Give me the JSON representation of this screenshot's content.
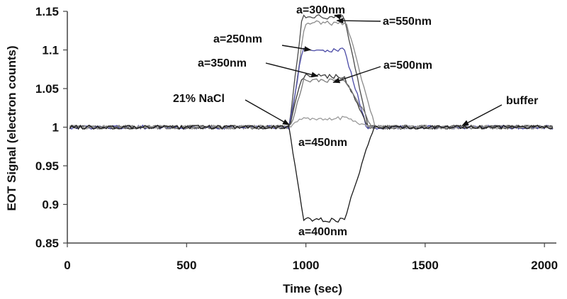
{
  "chart_data": {
    "type": "line",
    "xlabel": "Time (sec)",
    "ylabel": "EOT Signal (electron counts)",
    "xlim": [
      0,
      2050
    ],
    "ylim": [
      0.85,
      1.15
    ],
    "x_ticks": [
      0,
      500,
      1000,
      1500,
      2000
    ],
    "y_ticks": [
      0.85,
      0.9,
      0.95,
      1,
      1.05,
      1.1,
      1.15
    ],
    "x_tick_labels": [
      "0",
      "500",
      "1000",
      "1500",
      "2000"
    ],
    "y_tick_labels": [
      "0.85",
      "0.9",
      "0.95",
      "1",
      "1.05",
      "1.1",
      "1.15"
    ],
    "grid": false,
    "series": [
      {
        "name": "a=300nm",
        "color": "#4a4a4a",
        "plateau": 1.143,
        "rise_start": 930,
        "rise_end": 985,
        "fall_start": 1160,
        "fall_end": 1260
      },
      {
        "name": "a=550nm",
        "color": "#8a8a8a",
        "plateau": 1.135,
        "rise_start": 935,
        "rise_end": 995,
        "fall_start": 1170,
        "fall_end": 1290
      },
      {
        "name": "a=250nm",
        "color": "#4b4ba6",
        "plateau": 1.1,
        "rise_start": 930,
        "rise_end": 985,
        "fall_start": 1160,
        "fall_end": 1255
      },
      {
        "name": "a=350nm",
        "color": "#3a3a3a",
        "plateau": 1.066,
        "rise_start": 930,
        "rise_end": 985,
        "fall_start": 1160,
        "fall_end": 1260
      },
      {
        "name": "a=500nm",
        "color": "#7a7a7a",
        "plateau": 1.06,
        "rise_start": 935,
        "rise_end": 990,
        "fall_start": 1165,
        "fall_end": 1280
      },
      {
        "name": "a=450nm",
        "color": "#9a9a9a",
        "plateau": 1.012,
        "rise_start": 935,
        "rise_end": 985,
        "fall_start": 1165,
        "fall_end": 1275
      },
      {
        "name": "a=400nm",
        "color": "#1a1a1a",
        "plateau": 0.88,
        "rise_start": 930,
        "rise_end": 990,
        "fall_start": 1160,
        "fall_end": 1285
      }
    ],
    "annotations": [
      {
        "text": "a=300nm",
        "target_x": 1120,
        "target_y": 1.145
      },
      {
        "text": "a=550nm",
        "target_x": 1130,
        "target_y": 1.138
      },
      {
        "text": "a=250nm",
        "target_x": 1020,
        "target_y": 1.1
      },
      {
        "text": "a=350nm",
        "target_x": 1050,
        "target_y": 1.066
      },
      {
        "text": "a=500nm",
        "target_x": 1115,
        "target_y": 1.058
      },
      {
        "text": "21% NaCl",
        "target_x": 930,
        "target_y": 1.003
      },
      {
        "text": "buffer",
        "target_x": 1655,
        "target_y": 1.002
      },
      {
        "text": "a=450nm",
        "target_x": null,
        "target_y": null
      },
      {
        "text": "a=400nm",
        "target_x": null,
        "target_y": null
      }
    ]
  }
}
